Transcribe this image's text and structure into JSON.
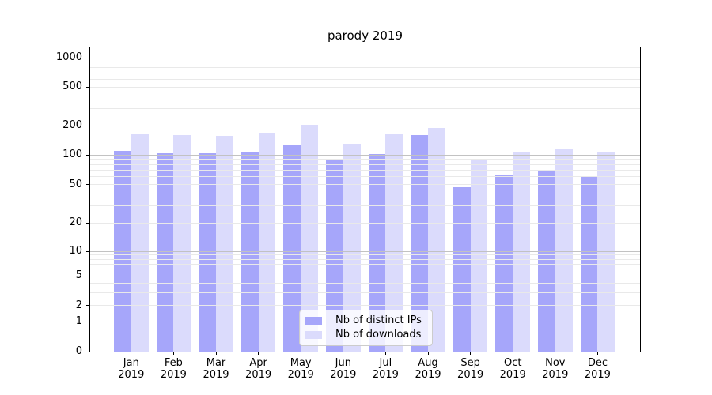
{
  "chart_data": {
    "type": "bar",
    "title": "parody 2019",
    "categories": [
      "Jan",
      "Feb",
      "Mar",
      "Apr",
      "May",
      "Jun",
      "Jul",
      "Aug",
      "Sep",
      "Oct",
      "Nov",
      "Dec"
    ],
    "x_tick_year": "2019",
    "series": [
      {
        "name": "Nb of distinct IPs",
        "color": "#a6a6fa",
        "values": [
          110,
          103,
          103,
          107,
          125,
          88,
          102,
          160,
          47,
          63,
          68,
          60
        ]
      },
      {
        "name": "Nb of downloads",
        "color": "#dbdbfc",
        "values": [
          165,
          161,
          156,
          170,
          205,
          131,
          164,
          190,
          90,
          108,
          115,
          105
        ]
      }
    ],
    "y_axis": {
      "scale": "symlog",
      "tick_labels": [
        "0",
        "1",
        "2",
        "5",
        "10",
        "20",
        "50",
        "100",
        "200",
        "500",
        "1000"
      ],
      "ticks": [
        0,
        1,
        2,
        5,
        10,
        20,
        50,
        100,
        200,
        500,
        1000
      ],
      "ylim": [
        0,
        1250
      ],
      "grid": "on"
    },
    "legend": {
      "position": "inside-lower-center",
      "entries": [
        "Nb of distinct IPs",
        "Nb of downloads"
      ]
    }
  },
  "colors": {
    "background": "#ffffff",
    "axis": "#000000",
    "major_grid": "#c2c2c2",
    "minor_grid": "#e9e9e9",
    "legend_border": "#cccccc",
    "series_ips": "#a6a6fa",
    "series_downloads": "#dbdbfc"
  }
}
